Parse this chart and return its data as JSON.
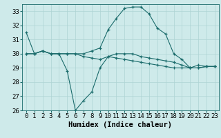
{
  "xlabel": "Humidex (Indice chaleur)",
  "bg_color": "#ceeaea",
  "grid_color": "#aed4d4",
  "line_color": "#1a6b6b",
  "x": [
    0,
    1,
    2,
    3,
    4,
    5,
    6,
    7,
    8,
    9,
    10,
    11,
    12,
    13,
    14,
    15,
    16,
    17,
    18,
    19,
    20,
    21,
    22,
    23
  ],
  "line1": [
    31.5,
    30.0,
    30.2,
    30.0,
    30.0,
    30.0,
    30.0,
    30.0,
    30.2,
    30.4,
    31.7,
    32.5,
    33.2,
    33.3,
    33.3,
    32.8,
    31.8,
    31.4,
    30.0,
    29.6,
    29.0,
    29.2,
    29.1,
    29.1
  ],
  "line2": [
    30.0,
    30.0,
    30.2,
    30.0,
    30.0,
    30.0,
    30.0,
    29.8,
    29.7,
    29.6,
    29.8,
    30.0,
    30.0,
    30.0,
    29.8,
    29.7,
    29.6,
    29.5,
    29.4,
    29.2,
    29.0,
    29.0,
    29.1,
    29.1
  ],
  "line3": [
    30.0,
    30.0,
    30.2,
    30.0,
    30.0,
    28.8,
    26.0,
    26.7,
    27.3,
    29.0,
    29.8,
    29.7,
    29.6,
    29.5,
    29.4,
    29.3,
    29.2,
    29.1,
    29.0,
    29.0,
    29.0,
    29.0,
    29.1,
    29.1
  ],
  "ylim": [
    26,
    33.5
  ],
  "yticks": [
    26,
    27,
    28,
    29,
    30,
    31,
    32,
    33
  ],
  "xticks": [
    0,
    1,
    2,
    3,
    4,
    5,
    6,
    7,
    8,
    9,
    10,
    11,
    12,
    13,
    14,
    15,
    16,
    17,
    18,
    19,
    20,
    21,
    22,
    23
  ],
  "xlabel_fontsize": 7.5,
  "tick_fontsize": 6.5
}
